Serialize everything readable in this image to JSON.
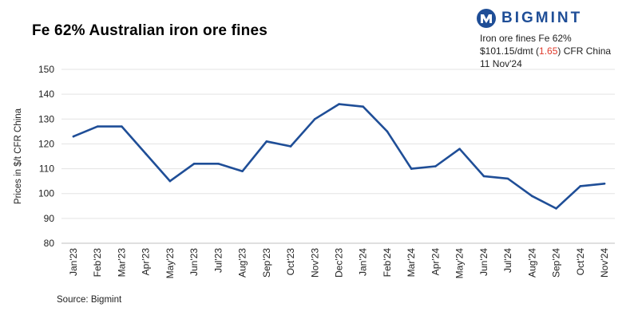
{
  "header": {
    "title": "Fe 62% Australian iron ore fines"
  },
  "brand": {
    "name": "BIGMINT",
    "icon": "bigmint-globe-icon",
    "color": "#1f4e97"
  },
  "info": {
    "line1": "Iron ore fines Fe 62%",
    "price": "$101.15/dmt (",
    "change": "1.65",
    "price_suffix": ") CFR China",
    "date": "11 Nov'24",
    "change_color": "#e03b2c"
  },
  "footer": {
    "source": "Source: Bigmint"
  },
  "chart_data": {
    "type": "line",
    "title": "Fe 62% Australian iron ore fines",
    "xlabel": "",
    "ylabel": "Prices in $/t CFR China",
    "ylim": [
      80,
      150
    ],
    "yticks": [
      80,
      90,
      100,
      110,
      120,
      130,
      140,
      150
    ],
    "grid": true,
    "line_color": "#1f4e97",
    "categories": [
      "Jan'23",
      "Feb'23",
      "Mar'23",
      "Apr'23",
      "May'23",
      "Jun'23",
      "Jul'23",
      "Aug'23",
      "Sep'23",
      "Oct'23",
      "Nov'23",
      "Dec'23",
      "Jan'24",
      "Feb'24",
      "Mar'24",
      "Apr'24",
      "May'24",
      "Jun'24",
      "Jul'24",
      "Aug'24",
      "Sep'24",
      "Oct'24",
      "Nov'24"
    ],
    "series": [
      {
        "values": [
          123,
          127,
          127,
          116,
          105,
          112,
          112,
          109,
          121,
          119,
          130,
          136,
          135,
          125,
          110,
          111,
          118,
          107,
          106,
          99,
          94,
          103,
          104
        ]
      }
    ]
  }
}
